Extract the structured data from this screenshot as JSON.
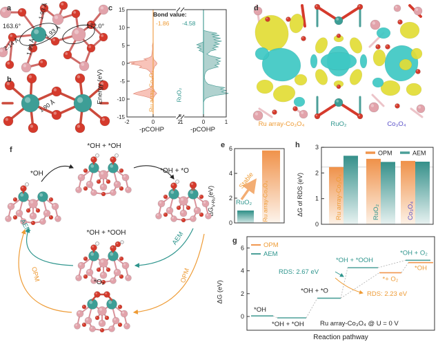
{
  "panel_letters": {
    "a": "a",
    "b": "b",
    "c": "c",
    "d": "d",
    "e": "e",
    "f": "f",
    "g": "g",
    "h": "h"
  },
  "panel_a": {
    "angle_left": "163.6°",
    "angle_right": "172.0°",
    "bond_top": "1.93 Å",
    "bond_mid": "1.93 Å",
    "bond_left": "2.14 Å",
    "bond_bottom": "1.90 Å"
  },
  "panel_b": {
    "bond": "1.90 Å"
  },
  "panel_c": {
    "ylabel": "Energy (eV)",
    "bond_value_title": "Bond value:",
    "left_value": "-1.86",
    "right_value": "-4.58",
    "left_name": "Ru array-Co₃O₄",
    "right_name": "RuO₂",
    "xlabel_left": "-pCOHP",
    "xlabel_right": "-pCOHP"
  },
  "panel_d": {
    "labels": [
      {
        "text": "Ru array-Co₃O₄",
        "color": "#ee9b35"
      },
      {
        "text": "RuO₂",
        "color": "#2e958d"
      },
      {
        "text": "Co₃O₄",
        "color": "#5a50c8"
      }
    ]
  },
  "panel_e": {
    "ylabel_pre": "ΔG",
    "ylabel_sub": "V-Ru",
    "ylabel_post": "(eV)",
    "annotation": "Stable",
    "bar1_label": "RuO₂",
    "bar2_label": "Ru array-Co₃O₄"
  },
  "panel_f": {
    "species": {
      "oh": "*OH",
      "oh_oh": "*OH + *OH",
      "oh_o": "*OH + *O",
      "oh_ooh": "*OH + *OOH",
      "o2": "*O₂"
    },
    "aem": "AEM",
    "opm": "OPM"
  },
  "panel_g": {
    "ylabel": "ΔG (eV)",
    "xlabel": "Reaction pathway"
  },
  "panel_h": {
    "ylabel": "ΔG of RDS (eV)"
  },
  "chart_data": [
    {
      "id": "c",
      "type": "area",
      "title": "Bond value:",
      "ylabel": "Energy (eV)",
      "ylim": [
        -15,
        15
      ],
      "yticks": [
        15,
        10,
        5,
        0,
        -5,
        -10,
        -15
      ],
      "panels": [
        {
          "name": "Ru array-Co₃O₄",
          "bond_value": "-1.86",
          "xlabel": "-pCOHP",
          "xlim": [
            -2,
            2
          ],
          "xticks": [
            -2,
            0,
            2
          ],
          "line_color": "#f0a04c",
          "fill": "#f6b4a8",
          "stroke": "#e08a77",
          "profile": [
            [
              15,
              0
            ],
            [
              6,
              0
            ],
            [
              5,
              -0.06
            ],
            [
              4,
              -0.04
            ],
            [
              3,
              -0.08
            ],
            [
              2,
              -0.12
            ],
            [
              1.6,
              -0.3
            ],
            [
              1.2,
              -0.7
            ],
            [
              0.9,
              -0.5
            ],
            [
              0.6,
              -1.1
            ],
            [
              0.3,
              -1.85
            ],
            [
              0.1,
              -1.4
            ],
            [
              -0.2,
              -1.7
            ],
            [
              -0.5,
              -1.2
            ],
            [
              -0.8,
              -0.9
            ],
            [
              -1.2,
              -1.05
            ],
            [
              -1.6,
              -0.5
            ],
            [
              -2,
              -0.35
            ],
            [
              -2.5,
              -0.2
            ],
            [
              -3,
              -0.12
            ],
            [
              -4,
              -0.08
            ],
            [
              -5,
              -0.05
            ],
            [
              -6,
              -0.08
            ],
            [
              -6.8,
              -0.2
            ],
            [
              -7.4,
              -0.5
            ],
            [
              -7.8,
              -0.95
            ],
            [
              -8.2,
              -1.3
            ],
            [
              -8.5,
              -1.5
            ],
            [
              -8.8,
              -1.2
            ],
            [
              -9.2,
              -0.7
            ],
            [
              -9.6,
              -0.3
            ],
            [
              -10,
              -0.1
            ],
            [
              -10.5,
              -0.04
            ],
            [
              -11,
              0
            ],
            [
              -15,
              0
            ]
          ],
          "profile2": [
            [
              2,
              0
            ],
            [
              1,
              0.06
            ],
            [
              0.4,
              0.22
            ],
            [
              0,
              0.3
            ],
            [
              -0.4,
              0.25
            ],
            [
              -0.8,
              0.12
            ],
            [
              -1.5,
              0.05
            ],
            [
              -2,
              0.02
            ],
            [
              -7,
              0.02
            ],
            [
              -7.8,
              0.12
            ],
            [
              -8.4,
              0.28
            ],
            [
              -9,
              0.12
            ],
            [
              -9.6,
              0.03
            ],
            [
              -10,
              0
            ]
          ]
        },
        {
          "name": "RuO₂",
          "bond_value": "-4.58",
          "xlabel": "-pCOHP",
          "xlim": [
            -1,
            1
          ],
          "xticks": [
            -1,
            0,
            1
          ],
          "line_color": "#4b9f98",
          "fill": "#9cc7c3",
          "stroke": "#4b9f98",
          "profile": [
            [
              15,
              0
            ],
            [
              9.2,
              0
            ],
            [
              8.8,
              0.25
            ],
            [
              8.4,
              0.6
            ],
            [
              8.1,
              0.35
            ],
            [
              7.8,
              0.7
            ],
            [
              7.4,
              0.4
            ],
            [
              7.0,
              0.75
            ],
            [
              6.6,
              0.45
            ],
            [
              6.2,
              0.8
            ],
            [
              5.8,
              0.5
            ],
            [
              5.4,
              0.7
            ],
            [
              5.0,
              0.45
            ],
            [
              4.6,
              0.65
            ],
            [
              4.2,
              0.4
            ],
            [
              3.8,
              0.55
            ],
            [
              3.4,
              0.3
            ],
            [
              3.0,
              0.25
            ],
            [
              2.6,
              0.15
            ],
            [
              2.2,
              0.25
            ],
            [
              1.8,
              0.5
            ],
            [
              1.4,
              0.75
            ],
            [
              1.0,
              0.55
            ],
            [
              0.6,
              0.75
            ],
            [
              0.2,
              0.6
            ],
            [
              -0.2,
              0.7
            ],
            [
              -0.6,
              0.5
            ],
            [
              -1.0,
              0.65
            ],
            [
              -1.4,
              0.4
            ],
            [
              -1.8,
              0.2
            ],
            [
              -2.4,
              0.1
            ],
            [
              -3,
              0.06
            ],
            [
              -4,
              0.04
            ],
            [
              -5,
              0.08
            ],
            [
              -5.8,
              0.2
            ],
            [
              -6.4,
              0.55
            ],
            [
              -6.8,
              0.95
            ],
            [
              -7.2,
              0.75
            ],
            [
              -7.6,
              1.0
            ],
            [
              -8.0,
              0.8
            ],
            [
              -8.4,
              1.1
            ],
            [
              -8.7,
              0.85
            ],
            [
              -9.0,
              0.5
            ],
            [
              -9.4,
              0.25
            ],
            [
              -9.8,
              0.1
            ],
            [
              -10.4,
              0.03
            ],
            [
              -11,
              0
            ],
            [
              -15,
              0
            ]
          ],
          "profile2": [
            [
              6,
              0
            ],
            [
              5.6,
              -0.15
            ],
            [
              5.2,
              -0.3
            ],
            [
              4.8,
              -0.12
            ],
            [
              4.4,
              -0.28
            ],
            [
              4.0,
              -0.1
            ],
            [
              3.6,
              -0.2
            ],
            [
              3.2,
              -0.05
            ],
            [
              2.8,
              0
            ]
          ]
        }
      ]
    },
    {
      "id": "e",
      "type": "bar",
      "ylim": [
        0,
        6
      ],
      "yticks": [
        0,
        2,
        4,
        6
      ],
      "annotation": "Stable",
      "bars": [
        {
          "label": "RuO₂",
          "value": 1.0,
          "color_top": "#2f8f87",
          "color_bottom": "#cfe6e4"
        },
        {
          "label": "Ru array-Co₃O₄",
          "value": 5.85,
          "color_top": "#f0924a",
          "color_bottom": "#fdf4ec"
        }
      ]
    },
    {
      "id": "h",
      "type": "bar",
      "ylim": [
        0,
        3
      ],
      "yticks": [
        0,
        1,
        2,
        3
      ],
      "refline": 2.23,
      "categories": [
        {
          "label": "Ru array-Co₃O₄",
          "color": "#ee9b35"
        },
        {
          "label": "RuO₂",
          "color": "#2e958d"
        },
        {
          "label": "Co₃O₄",
          "color": "#5a50c8"
        }
      ],
      "series": [
        {
          "name": "OPM",
          "color": "#f0964e",
          "values": [
            2.23,
            2.55,
            2.47
          ]
        },
        {
          "name": "AEM",
          "color": "#4b9f98",
          "values": [
            2.67,
            2.43,
            2.44
          ]
        }
      ]
    },
    {
      "id": "g",
      "type": "step",
      "ylim": [
        0,
        6
      ],
      "yticks": [
        0,
        2,
        4,
        6
      ],
      "legend": [
        {
          "name": "OPM",
          "color": "#f0964e"
        },
        {
          "name": "AEM",
          "color": "#4b9f98"
        }
      ],
      "shared_steps": [
        {
          "label": "*OH",
          "value": 0.05
        },
        {
          "label": "*OH + *OH",
          "value": -0.12
        },
        {
          "label": "*OH + *O",
          "value": 1.6
        }
      ],
      "aem_steps": [
        {
          "label": "*OH + *OOH",
          "value": 4.27
        },
        {
          "label": "*OH + O₂",
          "value": 4.92
        }
      ],
      "opm_steps": [
        {
          "label": "*+ O₂",
          "value": 3.83
        },
        {
          "label": "*OH",
          "value": 4.72
        }
      ],
      "rds_aem": "RDS: 2.67 eV",
      "rds_opm": "RDS: 2.23 eV",
      "note": "Ru array-Co₃O₄ @ U = 0 V"
    }
  ]
}
